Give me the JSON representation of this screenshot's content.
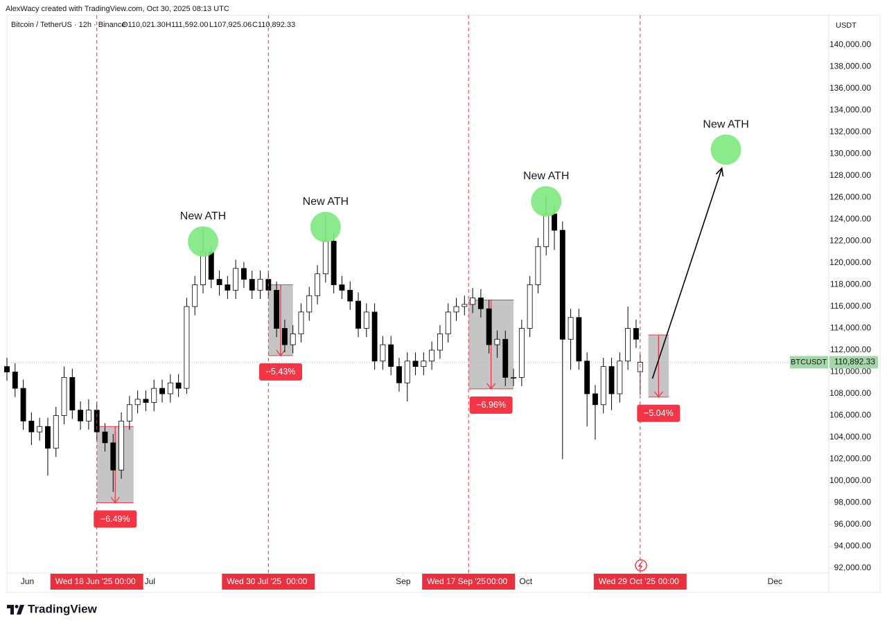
{
  "header": {
    "author_line": "AlexWacy created with TradingView.com, Oct 30, 2025 08:13 UTC",
    "legend": "Bitcoin / TetherUS · 12h · Binance",
    "ohlc": [
      "O110,021.30",
      "H111,592.00",
      "L107,925.06",
      "C110,892.33"
    ]
  },
  "chart_data": {
    "type": "candlestick",
    "currency": "USDT",
    "x": [
      "2025-05-27",
      "2025-05-29",
      "2025-05-31",
      "2025-06-02",
      "2025-06-04",
      "2025-06-06",
      "2025-06-08",
      "2025-06-10",
      "2025-06-12",
      "2025-06-14",
      "2025-06-16",
      "2025-06-18",
      "2025-06-20",
      "2025-06-22",
      "2025-06-24",
      "2025-06-26",
      "2025-06-28",
      "2025-06-30",
      "2025-07-02",
      "2025-07-04",
      "2025-07-06",
      "2025-07-08",
      "2025-07-10",
      "2025-07-12",
      "2025-07-14",
      "2025-07-16",
      "2025-07-18",
      "2025-07-20",
      "2025-07-22",
      "2025-07-24",
      "2025-07-26",
      "2025-07-28",
      "2025-07-30",
      "2025-08-01",
      "2025-08-03",
      "2025-08-05",
      "2025-08-07",
      "2025-08-09",
      "2025-08-11",
      "2025-08-13",
      "2025-08-15",
      "2025-08-17",
      "2025-08-19",
      "2025-08-21",
      "2025-08-23",
      "2025-08-25",
      "2025-08-27",
      "2025-08-29",
      "2025-08-31",
      "2025-09-02",
      "2025-09-04",
      "2025-09-06",
      "2025-09-08",
      "2025-09-10",
      "2025-09-12",
      "2025-09-14",
      "2025-09-16",
      "2025-09-18",
      "2025-09-20",
      "2025-09-22",
      "2025-09-24",
      "2025-09-26",
      "2025-09-28",
      "2025-09-30",
      "2025-10-02",
      "2025-10-04",
      "2025-10-06",
      "2025-10-08",
      "2025-10-10",
      "2025-10-12",
      "2025-10-14",
      "2025-10-16",
      "2025-10-18",
      "2025-10-20",
      "2025-10-22",
      "2025-10-24",
      "2025-10-26",
      "2025-10-28",
      "2025-10-29"
    ],
    "open": [
      110500,
      110000,
      108500,
      105500,
      104500,
      105000,
      103000,
      106000,
      109500,
      106500,
      105500,
      106500,
      104500,
      103500,
      101000,
      105500,
      107000,
      107500,
      107200,
      108500,
      108000,
      109000,
      108500,
      116000,
      118000,
      121000,
      118500,
      118000,
      117500,
      119500,
      118500,
      117500,
      118500,
      117500,
      114000,
      112500,
      113500,
      115500,
      117000,
      119000,
      122000,
      118000,
      117500,
      116500,
      114000,
      115500,
      111000,
      112500,
      110500,
      109000,
      111000,
      110500,
      111000,
      112000,
      113500,
      115500,
      116000,
      116200,
      116800,
      115800,
      112500,
      113000,
      109500,
      109500,
      114000,
      118000,
      121500,
      124500,
      123000,
      113000,
      115000,
      111000,
      108000,
      107000,
      110500,
      108000,
      111000,
      114000,
      110021.3
    ],
    "high": [
      111300,
      110800,
      109300,
      106300,
      105800,
      105800,
      106800,
      110500,
      110300,
      107300,
      107500,
      107300,
      105300,
      104300,
      106300,
      107800,
      108300,
      108300,
      109300,
      109300,
      109800,
      109800,
      116800,
      118800,
      123200,
      121500,
      119300,
      118800,
      120300,
      120100,
      119300,
      119300,
      119300,
      118300,
      114800,
      114300,
      116300,
      117800,
      119800,
      124400,
      122800,
      118800,
      118300,
      117300,
      116300,
      116300,
      113300,
      113300,
      111300,
      111800,
      111800,
      111800,
      112800,
      114300,
      116300,
      116800,
      117000,
      117700,
      117600,
      116600,
      113800,
      113800,
      110300,
      114800,
      118800,
      122300,
      126200,
      125300,
      123800,
      115800,
      115800,
      111800,
      108800,
      111300,
      111300,
      111800,
      116000,
      114800,
      111592.0
    ],
    "low": [
      109200,
      107700,
      104700,
      103300,
      103700,
      100500,
      102200,
      105200,
      105700,
      104700,
      104700,
      103700,
      102700,
      99000,
      100200,
      104700,
      106200,
      106400,
      106400,
      107200,
      107200,
      107700,
      108000,
      115200,
      117200,
      117700,
      117000,
      116700,
      116700,
      117700,
      116700,
      116700,
      116700,
      113200,
      111800,
      111700,
      112700,
      114700,
      116200,
      118200,
      117200,
      116700,
      115700,
      113200,
      113200,
      110200,
      110200,
      109700,
      108200,
      107300,
      109700,
      109700,
      110200,
      111200,
      112700,
      114700,
      115200,
      115400,
      115000,
      111700,
      111300,
      108700,
      108700,
      108700,
      113200,
      117200,
      120700,
      121200,
      102000,
      110200,
      110200,
      105000,
      103800,
      106200,
      106500,
      107200,
      110200,
      112200,
      107925.06
    ],
    "close": [
      110000,
      108500,
      105500,
      104500,
      105000,
      103000,
      106000,
      109500,
      106500,
      105500,
      106500,
      104500,
      103500,
      101000,
      105500,
      107000,
      107500,
      107200,
      108500,
      108000,
      109000,
      108500,
      116000,
      118000,
      121000,
      118500,
      118000,
      117500,
      119500,
      118500,
      117500,
      118500,
      117500,
      114000,
      112500,
      113500,
      115500,
      117000,
      119000,
      122000,
      118000,
      117500,
      116500,
      114000,
      115500,
      111000,
      112500,
      110500,
      109000,
      111000,
      110500,
      111000,
      112000,
      113500,
      115500,
      116000,
      116200,
      116800,
      115800,
      112500,
      113000,
      109500,
      109500,
      114000,
      118000,
      121500,
      124500,
      123000,
      113000,
      115000,
      111000,
      108000,
      107000,
      110500,
      108000,
      111000,
      114000,
      113000,
      110892.33
    ],
    "up_color": "#ffffff",
    "down_color": "#000000",
    "wick_color": "#000000",
    "xlim": [
      "2025-05-27",
      "2025-12-14"
    ],
    "xticks": [
      {
        "value": "2025-06-01",
        "label": "Jun"
      },
      {
        "value": "2025-07-01",
        "label": "Jul"
      },
      {
        "value": "2025-09-01",
        "label": "Sep"
      },
      {
        "value": "2025-10-01",
        "label": "Oct"
      },
      {
        "value": "2025-12-01",
        "label": "Dec"
      }
    ],
    "ylim": [
      89841,
      142730
    ],
    "yticks": [
      {
        "value": 92000,
        "label": "92,000.00"
      },
      {
        "value": 94000,
        "label": "94,000.00"
      },
      {
        "value": 96000,
        "label": "96,000.00"
      },
      {
        "value": 98000,
        "label": "98,000.00"
      },
      {
        "value": 100000,
        "label": "100,000.00"
      },
      {
        "value": 102000,
        "label": "102,000.00"
      },
      {
        "value": 104000,
        "label": "104,000.00"
      },
      {
        "value": 106000,
        "label": "106,000.00"
      },
      {
        "value": 108000,
        "label": "108,000.00"
      },
      {
        "value": 110000,
        "label": "110,000.00"
      },
      {
        "value": 112000,
        "label": "112,000.00"
      },
      {
        "value": 114000,
        "label": "114,000.00"
      },
      {
        "value": 116000,
        "label": "116,000.00"
      },
      {
        "value": 118000,
        "label": "118,000.00"
      },
      {
        "value": 120000,
        "label": "120,000.00"
      },
      {
        "value": 122000,
        "label": "122,000.00"
      },
      {
        "value": 124000,
        "label": "124,000.00"
      },
      {
        "value": 126000,
        "label": "126,000.00"
      },
      {
        "value": 128000,
        "label": "128,000.00"
      },
      {
        "value": 130000,
        "label": "130,000.00"
      },
      {
        "value": 132000,
        "label": "132,000.00"
      },
      {
        "value": 134000,
        "label": "134,000.00"
      },
      {
        "value": 136000,
        "label": "136,000.00"
      },
      {
        "value": 138000,
        "label": "138,000.00"
      },
      {
        "value": 140000,
        "label": "140,000.00"
      }
    ],
    "grid": false,
    "last_price": {
      "value": 110892.33,
      "label": "110,892.33",
      "symbol": "BTCUSDT"
    },
    "vlines": [
      {
        "x": "2025-06-18",
        "label": "Wed 18 Jun '25",
        "time": "00:00"
      },
      {
        "x": "2025-07-30",
        "label": "Wed 30 Jul '25",
        "time": "00:00"
      },
      {
        "x": "2025-09-17",
        "label": "Wed 17 Sep '25",
        "time": "00:00"
      },
      {
        "x": "2025-10-29",
        "label": "Wed 29 Oct '25",
        "time": "00:00"
      }
    ],
    "vline_color": "#e8303f",
    "drops": [
      {
        "x0": "2025-06-18",
        "x1": "2025-06-27",
        "top": 105000,
        "bottom": 98000,
        "label": "−6.49%"
      },
      {
        "x0": "2025-07-30",
        "x1": "2025-08-05",
        "top": 118000,
        "bottom": 111500,
        "label": "−5.43%"
      },
      {
        "x0": "2025-09-17",
        "x1": "2025-09-28",
        "top": 116600,
        "bottom": 108450,
        "label": "−6.96%"
      },
      {
        "x0": "2025-10-31",
        "x1": "2025-11-05",
        "top": 113400,
        "bottom": 107700,
        "label": "−5.04%"
      }
    ],
    "drop_color": "#f23645",
    "box_color": "#b2b2b2",
    "ath_marks": [
      {
        "x": "2025-07-14",
        "y": 121968,
        "label": "New ATH"
      },
      {
        "x": "2025-08-13",
        "y": 123300,
        "label": "New ATH"
      },
      {
        "x": "2025-10-06",
        "y": 125650,
        "label": "New ATH"
      },
      {
        "x": "2025-11-19",
        "y": 130400,
        "label": "New ATH"
      }
    ],
    "ath_color": "#7ee87e",
    "arrow": {
      "x": [
        "2025-11-01",
        "2025-11-18"
      ],
      "y": [
        109400,
        128700
      ]
    }
  },
  "footer": {
    "brand": "TradingView"
  }
}
